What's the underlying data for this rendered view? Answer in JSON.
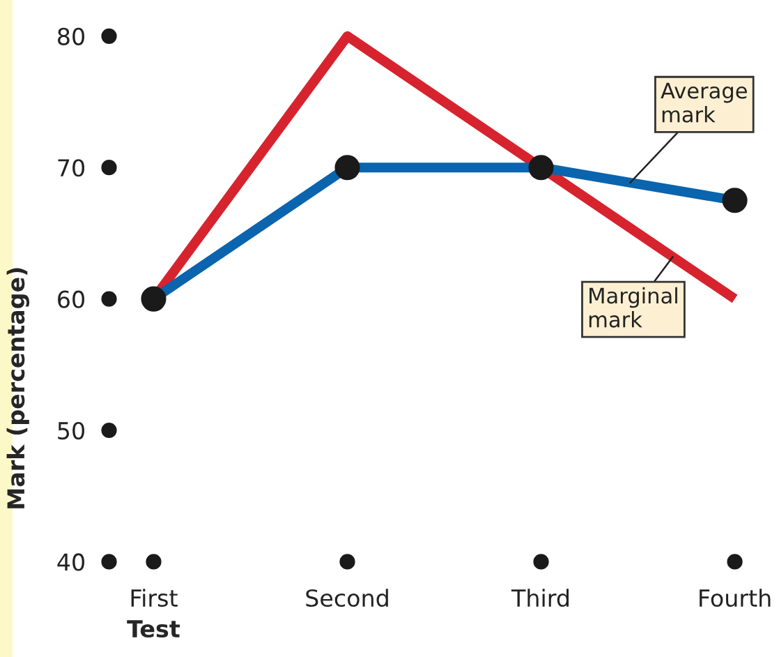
{
  "chart_data": {
    "type": "line",
    "xlabel": "Test",
    "ylabel": "Mark (percentage)",
    "categories": [
      "First",
      "Second",
      "Third",
      "Fourth"
    ],
    "series": [
      {
        "name": "Marginal mark",
        "color": "#d7232e",
        "values": [
          60,
          80,
          70,
          60
        ]
      },
      {
        "name": "Average mark",
        "color": "#0a64ae",
        "values": [
          60,
          70,
          70,
          67.5
        ],
        "marker": "circle"
      }
    ],
    "ylim": [
      40,
      80
    ],
    "yticks": [
      40,
      50,
      60,
      70,
      80
    ],
    "grid": false,
    "legend": "right"
  }
}
